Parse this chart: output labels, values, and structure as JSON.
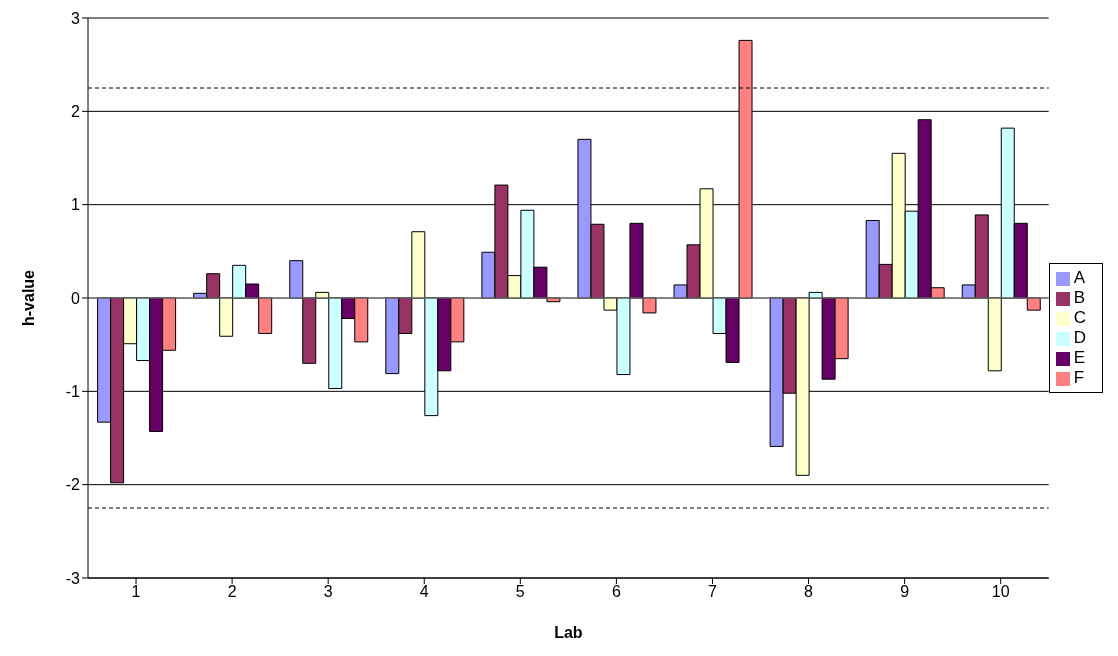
{
  "chart_data": {
    "type": "bar",
    "xlabel": "Lab",
    "ylabel": "h-value",
    "categories": [
      "1",
      "2",
      "3",
      "4",
      "5",
      "6",
      "7",
      "8",
      "9",
      "10"
    ],
    "series": [
      {
        "name": "A",
        "color": "#9999ff",
        "values": [
          -1.33,
          0.05,
          0.4,
          -0.81,
          0.49,
          1.7,
          0.14,
          -1.59,
          0.83,
          0.14
        ]
      },
      {
        "name": "B",
        "color": "#993366",
        "values": [
          -1.98,
          0.26,
          -0.7,
          -0.38,
          1.21,
          0.79,
          0.57,
          -1.02,
          0.36,
          0.89
        ]
      },
      {
        "name": "C",
        "color": "#ffffcc",
        "values": [
          -0.49,
          -0.41,
          0.06,
          0.71,
          0.24,
          -0.13,
          1.17,
          -1.9,
          1.55,
          -0.78
        ]
      },
      {
        "name": "D",
        "color": "#ccffff",
        "values": [
          -0.67,
          0.35,
          -0.97,
          -1.26,
          0.94,
          -0.82,
          -0.38,
          0.06,
          0.93,
          1.82
        ]
      },
      {
        "name": "E",
        "color": "#660066",
        "values": [
          -1.43,
          0.15,
          -0.22,
          -0.78,
          0.33,
          0.8,
          -0.69,
          -0.87,
          1.91,
          0.8
        ]
      },
      {
        "name": "F",
        "color": "#ff8080",
        "values": [
          -0.56,
          -0.38,
          -0.47,
          -0.47,
          -0.04,
          -0.16,
          2.76,
          -0.65,
          0.11,
          -0.13
        ]
      }
    ],
    "ylim": [
      -3,
      3
    ],
    "yticks": [
      -3,
      -2,
      -1,
      0,
      1,
      2,
      3
    ],
    "grid": "y",
    "legend": "right",
    "ref_lines": [
      {
        "axis": "y",
        "value": 2.25,
        "line_style": "dashed"
      },
      {
        "axis": "y",
        "value": -2.25,
        "line_style": "dashed"
      }
    ]
  }
}
